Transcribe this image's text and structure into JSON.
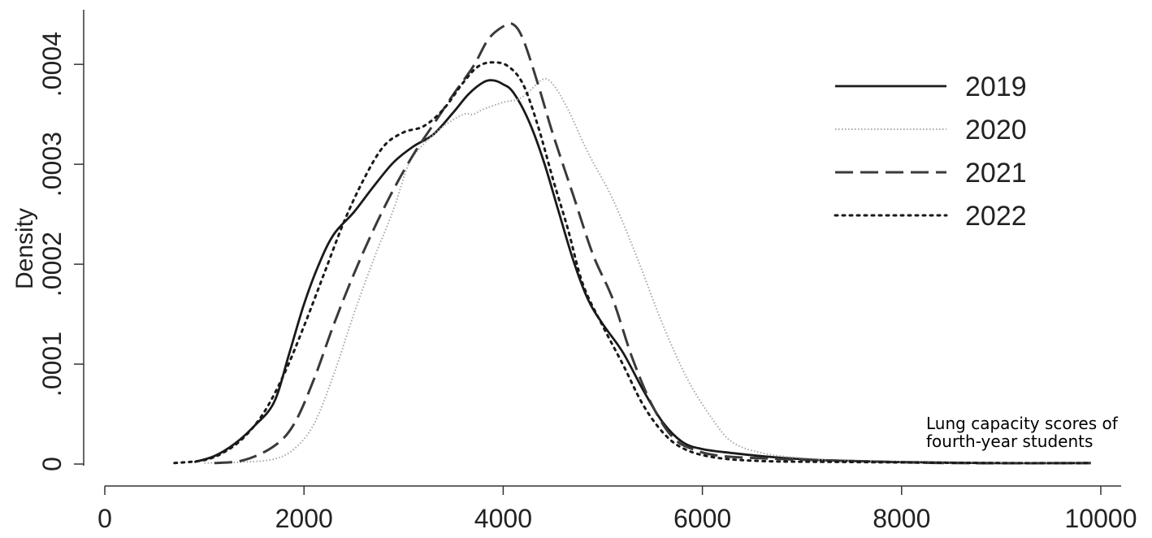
{
  "chart_data": {
    "type": "line",
    "ylabel": "Density",
    "xlabel": "",
    "annotation": [
      "Lung capacity scores of",
      "fourth-year students"
    ],
    "xlim": [
      0,
      10000
    ],
    "ylim": [
      0,
      0.00044
    ],
    "x_ticks": [
      0,
      2000,
      4000,
      6000,
      8000,
      10000
    ],
    "x_tick_labels": [
      "0",
      "2000",
      "4000",
      "6000",
      "8000",
      "10000"
    ],
    "y_ticks": [
      0,
      0.0001,
      0.0002,
      0.0003,
      0.0004
    ],
    "y_tick_labels": [
      "0",
      ".0001",
      ".0002",
      ".0003",
      ".0004"
    ],
    "legend_position": "top-right",
    "grid": false,
    "series": [
      {
        "name": "2019",
        "color": "#1a1a1a",
        "dash": "solid",
        "points": [
          [
            900,
            2e-06
          ],
          [
            1100,
            8e-06
          ],
          [
            1300,
            2e-05
          ],
          [
            1500,
            3.8e-05
          ],
          [
            1700,
            6.2e-05
          ],
          [
            1850,
            0.00011
          ],
          [
            2000,
            0.00016
          ],
          [
            2150,
            0.0002
          ],
          [
            2300,
            0.00023
          ],
          [
            2500,
            0.000252
          ],
          [
            2700,
            0.000278
          ],
          [
            2900,
            0.000302
          ],
          [
            3100,
            0.000318
          ],
          [
            3300,
            0.00033
          ],
          [
            3500,
            0.000352
          ],
          [
            3650,
            0.00037
          ],
          [
            3800,
            0.000382
          ],
          [
            3900,
            0.000384
          ],
          [
            4000,
            0.00038
          ],
          [
            4100,
            0.000372
          ],
          [
            4250,
            0.000345
          ],
          [
            4400,
            0.000305
          ],
          [
            4550,
            0.000255
          ],
          [
            4700,
            0.000205
          ],
          [
            4850,
            0.000165
          ],
          [
            5000,
            0.00014
          ],
          [
            5200,
            0.000112
          ],
          [
            5400,
            7.5e-05
          ],
          [
            5600,
            4.2e-05
          ],
          [
            5800,
            2.2e-05
          ],
          [
            6000,
            1.5e-05
          ],
          [
            6300,
            1.1e-05
          ],
          [
            6700,
            7e-06
          ],
          [
            7200,
            4e-06
          ],
          [
            8000,
            2e-06
          ],
          [
            9000,
            1e-06
          ],
          [
            9900,
            1e-06
          ]
        ]
      },
      {
        "name": "2020",
        "color": "#a8a8a8",
        "dash": "dotted",
        "points": [
          [
            1000,
            1e-06
          ],
          [
            1400,
            2e-06
          ],
          [
            1700,
            5e-06
          ],
          [
            1900,
            1.5e-05
          ],
          [
            2100,
            4e-05
          ],
          [
            2300,
            9e-05
          ],
          [
            2500,
            0.00015
          ],
          [
            2700,
            0.000205
          ],
          [
            2900,
            0.000255
          ],
          [
            3050,
            0.0003
          ],
          [
            3200,
            0.00032
          ],
          [
            3400,
            0.000338
          ],
          [
            3600,
            0.00035
          ],
          [
            3700,
            0.00035
          ],
          [
            3800,
            0.000355
          ],
          [
            4000,
            0.000362
          ],
          [
            4150,
            0.000365
          ],
          [
            4250,
            0.000372
          ],
          [
            4400,
            0.000385
          ],
          [
            4500,
            0.00038
          ],
          [
            4650,
            0.000355
          ],
          [
            4850,
            0.000312
          ],
          [
            5100,
            0.000265
          ],
          [
            5350,
            0.000205
          ],
          [
            5600,
            0.00014
          ],
          [
            5850,
            8.5e-05
          ],
          [
            6100,
            4.5e-05
          ],
          [
            6300,
            2.2e-05
          ],
          [
            6600,
            1.1e-05
          ],
          [
            7000,
            6e-06
          ],
          [
            7500,
            3e-06
          ],
          [
            8500,
            2e-06
          ],
          [
            9500,
            1e-06
          ],
          [
            9900,
            1e-06
          ]
        ]
      },
      {
        "name": "2021",
        "color": "#3a3a3a",
        "dash": "dashed",
        "points": [
          [
            1100,
            1e-06
          ],
          [
            1400,
            4e-06
          ],
          [
            1700,
            1.8e-05
          ],
          [
            1900,
            4e-05
          ],
          [
            2100,
            8.5e-05
          ],
          [
            2300,
            0.00014
          ],
          [
            2500,
            0.00019
          ],
          [
            2700,
            0.000235
          ],
          [
            2900,
            0.000275
          ],
          [
            3100,
            0.00031
          ],
          [
            3300,
            0.00034
          ],
          [
            3500,
            0.00037
          ],
          [
            3700,
            0.000398
          ],
          [
            3850,
            0.000425
          ],
          [
            4000,
            0.000438
          ],
          [
            4100,
            0.00044
          ],
          [
            4200,
            0.000425
          ],
          [
            4350,
            0.00038
          ],
          [
            4500,
            0.00033
          ],
          [
            4700,
            0.00027
          ],
          [
            4900,
            0.00021
          ],
          [
            5100,
            0.000165
          ],
          [
            5300,
            0.000105
          ],
          [
            5500,
            5.8e-05
          ],
          [
            5700,
            2.7e-05
          ],
          [
            5900,
            1.5e-05
          ],
          [
            6200,
            8e-06
          ],
          [
            6800,
            5e-06
          ],
          [
            7500,
            3e-06
          ],
          [
            8500,
            1e-06
          ],
          [
            9900,
            1e-06
          ]
        ]
      },
      {
        "name": "2022",
        "color": "#1a1a1a",
        "dash": "dot",
        "points": [
          [
            700,
            1e-06
          ],
          [
            1000,
            4e-06
          ],
          [
            1200,
            1.2e-05
          ],
          [
            1400,
            2.7e-05
          ],
          [
            1600,
            5.2e-05
          ],
          [
            1800,
            9e-05
          ],
          [
            2000,
            0.000138
          ],
          [
            2200,
            0.00019
          ],
          [
            2400,
            0.000242
          ],
          [
            2600,
            0.000285
          ],
          [
            2800,
            0.000318
          ],
          [
            3000,
            0.000332
          ],
          [
            3200,
            0.000338
          ],
          [
            3400,
            0.000355
          ],
          [
            3600,
            0.000382
          ],
          [
            3750,
            0.000398
          ],
          [
            3900,
            0.000402
          ],
          [
            4050,
            0.000398
          ],
          [
            4200,
            0.00038
          ],
          [
            4350,
            0.000338
          ],
          [
            4500,
            0.000285
          ],
          [
            4650,
            0.000235
          ],
          [
            4800,
            0.00018
          ],
          [
            5000,
            0.000138
          ],
          [
            5200,
            0.0001
          ],
          [
            5400,
            6e-05
          ],
          [
            5600,
            3.2e-05
          ],
          [
            5800,
            1.6e-05
          ],
          [
            6100,
            7e-06
          ],
          [
            6600,
            3e-06
          ],
          [
            7500,
            2e-06
          ],
          [
            9000,
            1e-06
          ],
          [
            9900,
            1e-06
          ]
        ]
      }
    ]
  }
}
